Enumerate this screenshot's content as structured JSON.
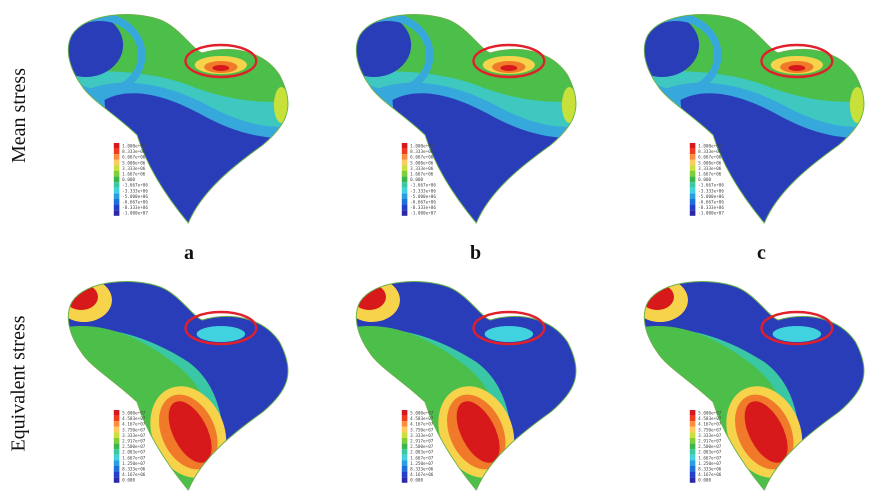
{
  "row_labels": [
    "Mean stress",
    "Equivalent stress"
  ],
  "panel_letters": [
    "a",
    "b",
    "c"
  ],
  "legends": {
    "mean": [
      "1.000e+07",
      "8.333e+06",
      "6.667e+06",
      "5.000e+06",
      "3.333e+06",
      "1.667e+06",
      "0.000",
      "-1.667e+06",
      "-3.333e+06",
      "-5.000e+06",
      "-6.667e+06",
      "-8.333e+06",
      "-1.000e+07"
    ],
    "equivalent": [
      "5.000e+07",
      "4.583e+07",
      "4.167e+07",
      "3.750e+07",
      "3.333e+07",
      "2.917e+07",
      "2.500e+07",
      "2.083e+07",
      "1.667e+07",
      "1.250e+07",
      "8.333e+06",
      "4.167e+06",
      "0.000"
    ]
  },
  "legend_colors": [
    "#d7191c",
    "#f03b20",
    "#fd8d3c",
    "#fecc5c",
    "#c8e03a",
    "#7fcd3a",
    "#3cb64a",
    "#39c7a4",
    "#41d2e0",
    "#2a9fe0",
    "#1f6fd8",
    "#1f3fcc",
    "#2a2aa8"
  ],
  "highlight_color": "#e0202a"
}
